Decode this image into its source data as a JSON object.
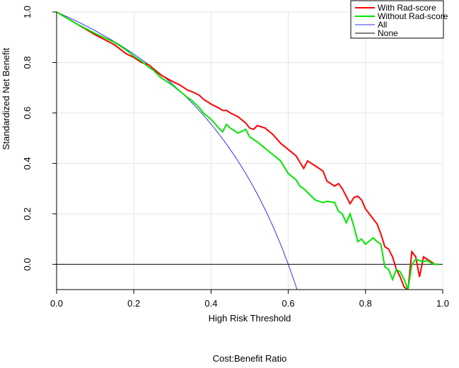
{
  "chart_data": {
    "type": "line",
    "title": "",
    "xlabel": "High Risk Threshold",
    "ylabel": "Standardized Net Benefit",
    "secondary_xlabel": "Cost:Benefit Ratio",
    "xlim": [
      0.0,
      1.0
    ],
    "ylim": [
      -0.1,
      1.0
    ],
    "grid": true,
    "legend_position": "top-right",
    "x_ticks": [
      "0.0",
      "0.2",
      "0.4",
      "0.6",
      "0.8",
      "1.0"
    ],
    "y_ticks": [
      "0.0",
      "0.2",
      "0.4",
      "0.6",
      "0.8",
      "1.0"
    ],
    "series": [
      {
        "name": "With Rad-score",
        "color": "#ff0000",
        "x": [
          0.0,
          0.05,
          0.1,
          0.15,
          0.18,
          0.2,
          0.22,
          0.24,
          0.25,
          0.27,
          0.3,
          0.32,
          0.34,
          0.35,
          0.37,
          0.38,
          0.4,
          0.42,
          0.43,
          0.44,
          0.45,
          0.47,
          0.49,
          0.5,
          0.51,
          0.52,
          0.54,
          0.56,
          0.58,
          0.6,
          0.62,
          0.63,
          0.64,
          0.65,
          0.67,
          0.69,
          0.7,
          0.72,
          0.73,
          0.74,
          0.75,
          0.76,
          0.77,
          0.78,
          0.79,
          0.8,
          0.82,
          0.83,
          0.84,
          0.85,
          0.86,
          0.87,
          0.88,
          0.89,
          0.9,
          0.91,
          0.92,
          0.93,
          0.94,
          0.95,
          0.96,
          0.97,
          0.98,
          0.99
        ],
        "y": [
          1.0,
          0.955,
          0.91,
          0.87,
          0.835,
          0.82,
          0.8,
          0.79,
          0.775,
          0.75,
          0.725,
          0.71,
          0.69,
          0.685,
          0.67,
          0.655,
          0.635,
          0.62,
          0.61,
          0.61,
          0.6,
          0.585,
          0.56,
          0.54,
          0.535,
          0.55,
          0.54,
          0.515,
          0.48,
          0.455,
          0.43,
          0.405,
          0.38,
          0.41,
          0.39,
          0.37,
          0.33,
          0.31,
          0.32,
          0.3,
          0.27,
          0.24,
          0.265,
          0.27,
          0.255,
          0.22,
          0.18,
          0.16,
          0.12,
          0.07,
          0.06,
          0.03,
          -0.02,
          -0.05,
          -0.09,
          -0.1,
          0.05,
          0.03,
          -0.05,
          0.03,
          0.02,
          0.01,
          0.0,
          0.0
        ]
      },
      {
        "name": "Without Rad-score",
        "color": "#00e600",
        "x": [
          0.0,
          0.05,
          0.1,
          0.15,
          0.18,
          0.2,
          0.22,
          0.24,
          0.25,
          0.27,
          0.3,
          0.32,
          0.34,
          0.35,
          0.37,
          0.38,
          0.4,
          0.42,
          0.43,
          0.44,
          0.45,
          0.47,
          0.49,
          0.5,
          0.51,
          0.52,
          0.54,
          0.56,
          0.58,
          0.6,
          0.62,
          0.63,
          0.64,
          0.65,
          0.67,
          0.69,
          0.7,
          0.72,
          0.73,
          0.74,
          0.75,
          0.76,
          0.77,
          0.78,
          0.79,
          0.8,
          0.82,
          0.83,
          0.84,
          0.85,
          0.86,
          0.87,
          0.88,
          0.89,
          0.9,
          0.91,
          0.92,
          0.93,
          0.94,
          0.95,
          0.96,
          0.97,
          0.98,
          0.99
        ],
        "y": [
          1.0,
          0.955,
          0.915,
          0.88,
          0.85,
          0.825,
          0.805,
          0.78,
          0.77,
          0.74,
          0.71,
          0.685,
          0.66,
          0.65,
          0.62,
          0.6,
          0.575,
          0.54,
          0.525,
          0.555,
          0.54,
          0.52,
          0.535,
          0.505,
          0.495,
          0.485,
          0.46,
          0.435,
          0.41,
          0.36,
          0.335,
          0.31,
          0.3,
          0.285,
          0.255,
          0.245,
          0.25,
          0.245,
          0.21,
          0.2,
          0.165,
          0.2,
          0.15,
          0.09,
          0.1,
          0.08,
          0.105,
          0.09,
          0.08,
          -0.01,
          -0.02,
          -0.06,
          -0.02,
          -0.03,
          -0.06,
          -0.1,
          0.0,
          0.02,
          0.015,
          0.01,
          0.015,
          0.005,
          0.0,
          0.0
        ]
      },
      {
        "name": "All",
        "color": "#3333ee",
        "curve": "treat-all",
        "prevalence": 0.6
      },
      {
        "name": "None",
        "color": "#000000",
        "x": [
          0.0,
          1.0
        ],
        "y": [
          0.0,
          0.0
        ]
      }
    ]
  }
}
